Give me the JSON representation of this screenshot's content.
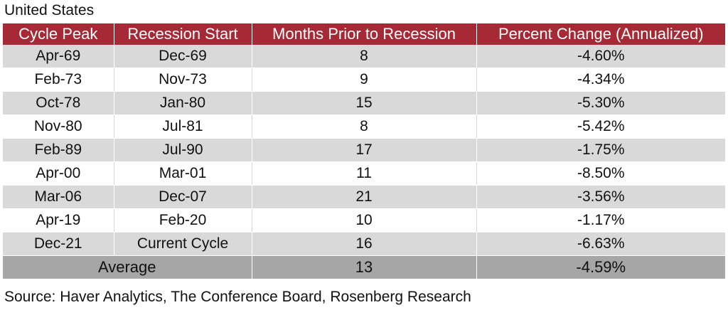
{
  "region_label": "United States",
  "chart_data": {
    "type": "table",
    "columns": [
      "Cycle Peak",
      "Recession Start",
      "Months Prior to Recession",
      "Percent Change (Annualized)"
    ],
    "rows": [
      [
        "Apr-69",
        "Dec-69",
        "8",
        "-4.60%"
      ],
      [
        "Feb-73",
        "Nov-73",
        "9",
        "-4.34%"
      ],
      [
        "Oct-78",
        "Jan-80",
        "15",
        "-5.30%"
      ],
      [
        "Nov-80",
        "Jul-81",
        "8",
        "-5.42%"
      ],
      [
        "Feb-89",
        "Jul-90",
        "17",
        "-1.75%"
      ],
      [
        "Apr-00",
        "Mar-01",
        "11",
        "-8.50%"
      ],
      [
        "Mar-06",
        "Dec-07",
        "21",
        "-3.56%"
      ],
      [
        "Apr-19",
        "Feb-20",
        "10",
        "-1.17%"
      ],
      [
        "Dec-21",
        "Current Cycle",
        "16",
        "-6.63%"
      ]
    ],
    "footer": {
      "label": "Average",
      "months": "13",
      "percent_change": "-4.59%"
    }
  },
  "source_note": "Source: Haver Analytics, The Conference Board, Rosenberg Research",
  "colors": {
    "header_bg": "#a52a35",
    "header_text": "#ffffff",
    "band_gray": "#d9d9d9",
    "footer_gray": "#a6a6a6"
  }
}
